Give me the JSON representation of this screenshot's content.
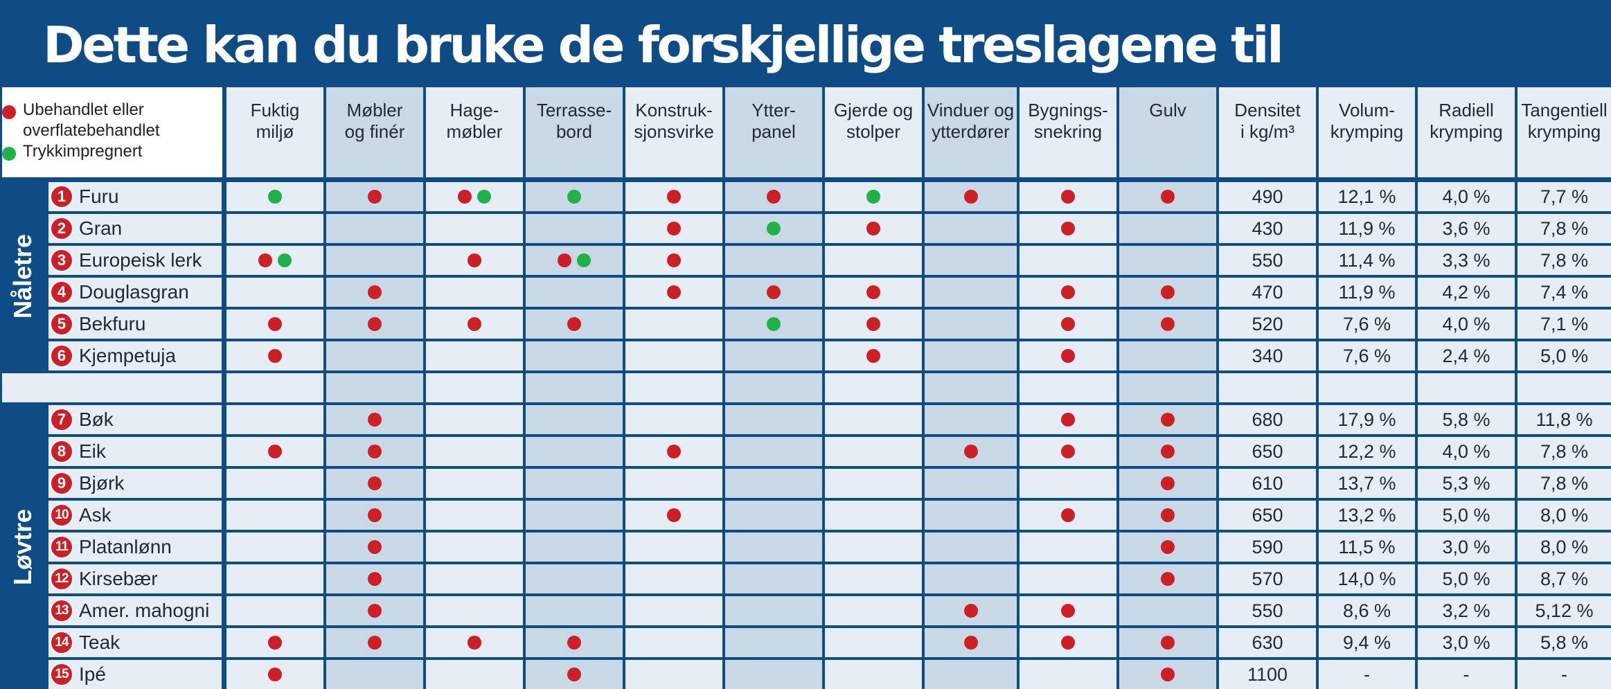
{
  "title": "Dette kan du bruke de forskjellige treslagene til",
  "legend": {
    "untreated": "Ubehandlet eller\noverflatebehandlet",
    "impregnated": "Trykkimpregnert"
  },
  "colors": {
    "untreated": "#cc1f26",
    "impregnated": "#21b14a"
  },
  "columns": [
    "Fuktig\nmiljø",
    "Møbler\nog finér",
    "Hage-\nmøbler",
    "Terrasse-\nbord",
    "Konstruk-\nsjonsvirke",
    "Ytter-\npanel",
    "Gjerde og\nstolper",
    "Vinduer og\nytterdører",
    "Bygnings-\nsnekring",
    "Gulv",
    "Densitet\ni kg/m³",
    "Volum-\nkrymping",
    "Radiell\nkrymping",
    "Tangentiell\nkrymping"
  ],
  "groups": [
    {
      "label": "Nåletre",
      "rows": [
        {
          "no": "1",
          "name": "Furu",
          "uses": [
            "g",
            "r",
            "rg",
            "g",
            "r",
            "r",
            "g",
            "r",
            "r",
            "r"
          ],
          "density": "490",
          "volume": "12,1 %",
          "radial": "4,0 %",
          "tangential": "7,7 %"
        },
        {
          "no": "2",
          "name": "Gran",
          "uses": [
            "",
            "",
            "",
            "",
            "r",
            "g",
            "r",
            "",
            "r",
            ""
          ],
          "density": "430",
          "volume": "11,9 %",
          "radial": "3,6 %",
          "tangential": "7,8 %"
        },
        {
          "no": "3",
          "name": "Europeisk lerk",
          "uses": [
            "rg",
            "",
            "r",
            "rg",
            "r",
            "",
            "",
            "",
            "",
            ""
          ],
          "density": "550",
          "volume": "11,4 %",
          "radial": "3,3 %",
          "tangential": "7,8 %"
        },
        {
          "no": "4",
          "name": "Douglasgran",
          "uses": [
            "",
            "r",
            "",
            "",
            "r",
            "r",
            "r",
            "",
            "r",
            "r"
          ],
          "density": "470",
          "volume": "11,9 %",
          "radial": "4,2 %",
          "tangential": "7,4 %"
        },
        {
          "no": "5",
          "name": "Bekfuru",
          "uses": [
            "r",
            "r",
            "r",
            "r",
            "",
            "g",
            "r",
            "",
            "r",
            "r"
          ],
          "density": "520",
          "volume": "7,6 %",
          "radial": "4,0 %",
          "tangential": "7,1 %"
        },
        {
          "no": "6",
          "name": "Kjempetuja",
          "uses": [
            "r",
            "",
            "",
            "",
            "",
            "",
            "r",
            "",
            "r",
            ""
          ],
          "density": "340",
          "volume": "7,6 %",
          "radial": "2,4 %",
          "tangential": "5,0 %"
        }
      ]
    },
    {
      "label": "Løvtre",
      "rows": [
        {
          "no": "7",
          "name": "Bøk",
          "uses": [
            "",
            "r",
            "",
            "",
            "",
            "",
            "",
            "",
            "r",
            "r"
          ],
          "density": "680",
          "volume": "17,9 %",
          "radial": "5,8 %",
          "tangential": "11,8 %"
        },
        {
          "no": "8",
          "name": "Eik",
          "uses": [
            "r",
            "r",
            "",
            "",
            "r",
            "",
            "",
            "r",
            "r",
            "r"
          ],
          "density": "650",
          "volume": "12,2 %",
          "radial": "4,0 %",
          "tangential": "7,8 %"
        },
        {
          "no": "9",
          "name": "Bjørk",
          "uses": [
            "",
            "r",
            "",
            "",
            "",
            "",
            "",
            "",
            "",
            "r"
          ],
          "density": "610",
          "volume": "13,7 %",
          "radial": "5,3 %",
          "tangential": "7,8 %"
        },
        {
          "no": "10",
          "name": "Ask",
          "uses": [
            "",
            "r",
            "",
            "",
            "r",
            "",
            "",
            "",
            "r",
            "r"
          ],
          "density": "650",
          "volume": "13,2 %",
          "radial": "5,0 %",
          "tangential": "8,0 %"
        },
        {
          "no": "11",
          "name": "Platanlønn",
          "uses": [
            "",
            "r",
            "",
            "",
            "",
            "",
            "",
            "",
            "",
            "r"
          ],
          "density": "590",
          "volume": "11,5 %",
          "radial": "3,0 %",
          "tangential": "8,0 %"
        },
        {
          "no": "12",
          "name": "Kirsebær",
          "uses": [
            "",
            "r",
            "",
            "",
            "",
            "",
            "",
            "",
            "",
            "r"
          ],
          "density": "570",
          "volume": "14,0 %",
          "radial": "5,0 %",
          "tangential": "8,7 %"
        },
        {
          "no": "13",
          "name": "Amer. mahogni",
          "uses": [
            "",
            "r",
            "",
            "",
            "",
            "",
            "",
            "r",
            "r",
            ""
          ],
          "density": "550",
          "volume": "8,6 %",
          "radial": "3,2 %",
          "tangential": "5,12 %"
        },
        {
          "no": "14",
          "name": "Teak",
          "uses": [
            "r",
            "r",
            "r",
            "r",
            "",
            "",
            "",
            "r",
            "r",
            "r"
          ],
          "density": "630",
          "volume": "9,4 %",
          "radial": "3,0 %",
          "tangential": "5,8 %"
        },
        {
          "no": "15",
          "name": "Ipé",
          "uses": [
            "r",
            "",
            "",
            "r",
            "",
            "",
            "",
            "",
            "",
            "r"
          ],
          "density": "1100",
          "volume": "-",
          "radial": "-",
          "tangential": "-"
        }
      ]
    }
  ]
}
